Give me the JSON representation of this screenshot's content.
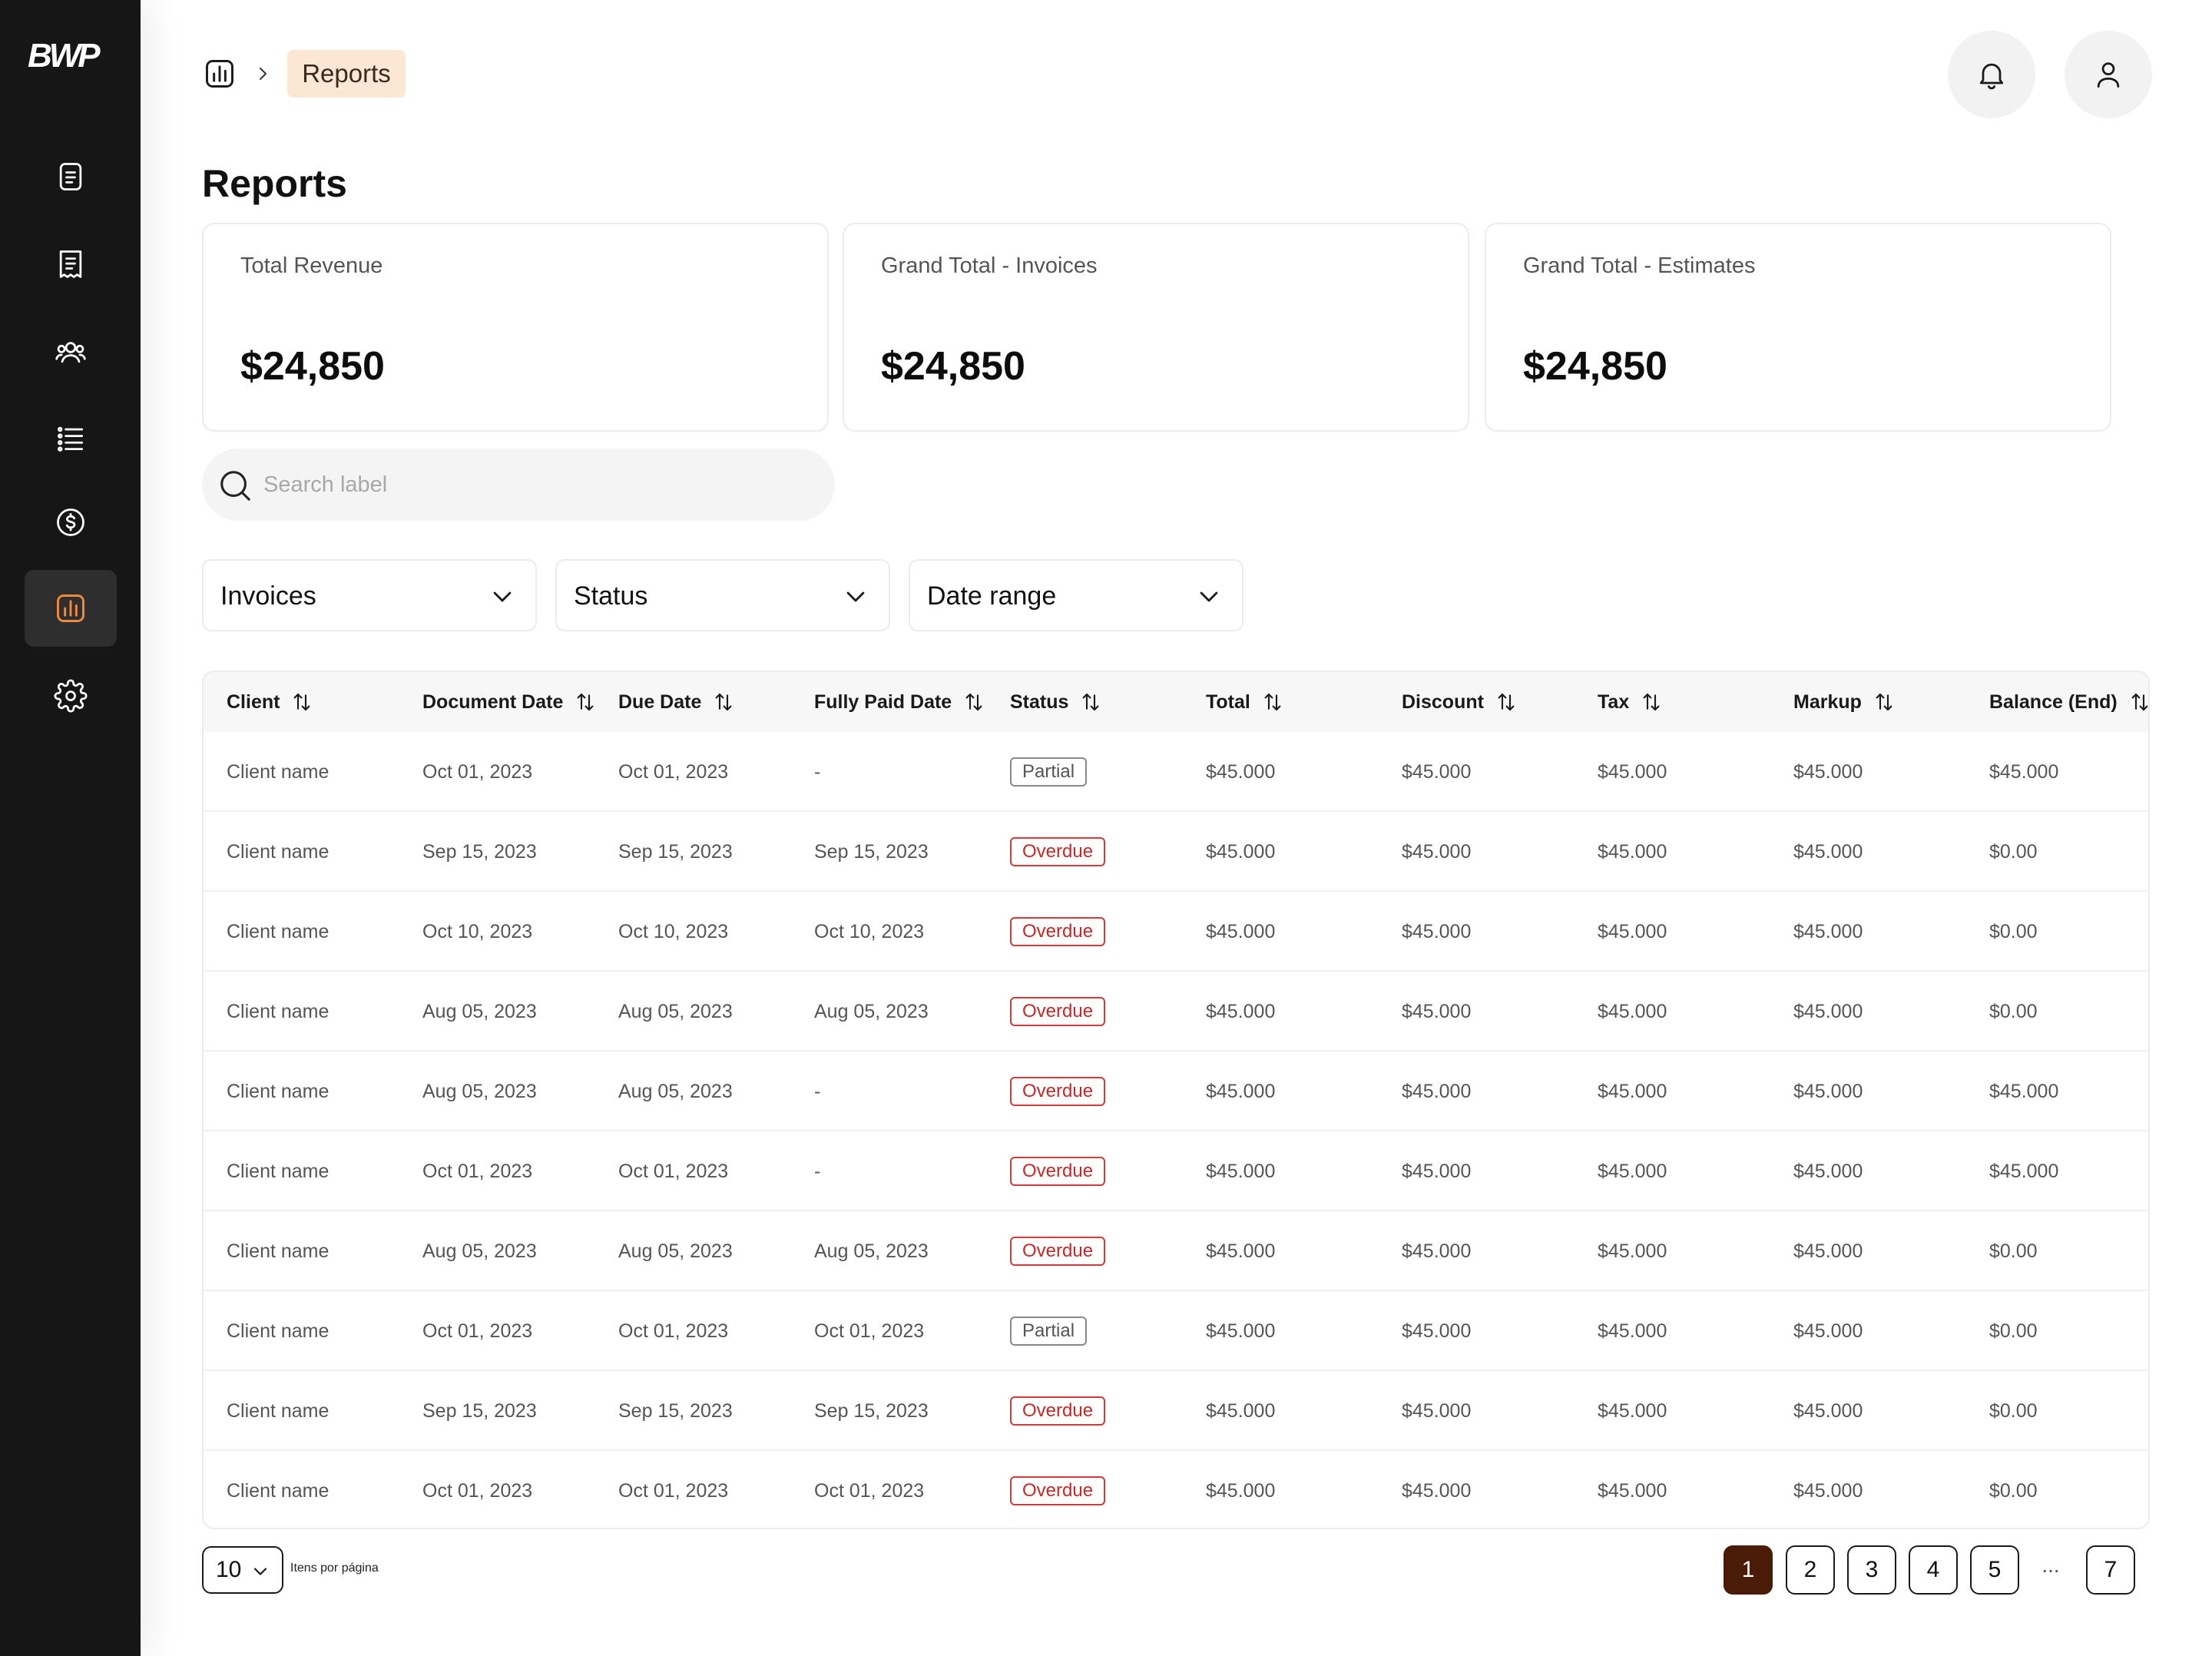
{
  "app": {
    "logo": "BWP"
  },
  "sidebar": {
    "items": [
      {
        "icon": "document-icon"
      },
      {
        "icon": "receipt-icon"
      },
      {
        "icon": "users-icon"
      },
      {
        "icon": "list-icon"
      },
      {
        "icon": "dollar-icon"
      },
      {
        "icon": "bar-chart-icon",
        "active": true
      },
      {
        "icon": "gear-icon"
      }
    ]
  },
  "header": {
    "breadcrumb_icon": "bar-chart-icon",
    "breadcrumb_current": "Reports",
    "accent_bg": "#fce7d4"
  },
  "page": {
    "title": "Reports"
  },
  "cards": [
    {
      "label": "Total Revenue",
      "value": "$24,850"
    },
    {
      "label": "Grand Total - Invoices",
      "value": "$24,850"
    },
    {
      "label": "Grand Total - Estimates",
      "value": "$24,850"
    }
  ],
  "search": {
    "placeholder": "Search label",
    "value": ""
  },
  "filters": [
    {
      "label": "Invoices"
    },
    {
      "label": "Status"
    },
    {
      "label": "Date range"
    }
  ],
  "table": {
    "columns": [
      "Client",
      "Document Date",
      "Due Date",
      "Fully Paid Date",
      "Status",
      "Total",
      "Discount",
      "Tax",
      "Markup",
      "Balance (End)"
    ],
    "rows": [
      [
        "Client name",
        "Oct 01, 2023",
        "Oct 01, 2023",
        "-",
        "Partial",
        "$45.000",
        "$45.000",
        "$45.000",
        "$45.000",
        "$45.000"
      ],
      [
        "Client name",
        "Sep 15, 2023",
        "Sep 15, 2023",
        "Sep 15, 2023",
        "Overdue",
        "$45.000",
        "$45.000",
        "$45.000",
        "$45.000",
        "$0.00"
      ],
      [
        "Client name",
        "Oct 10, 2023",
        "Oct 10, 2023",
        "Oct 10, 2023",
        "Overdue",
        "$45.000",
        "$45.000",
        "$45.000",
        "$45.000",
        "$0.00"
      ],
      [
        "Client name",
        "Aug 05, 2023",
        "Aug 05, 2023",
        "Aug 05, 2023",
        "Overdue",
        "$45.000",
        "$45.000",
        "$45.000",
        "$45.000",
        "$0.00"
      ],
      [
        "Client name",
        "Aug 05, 2023",
        "Aug 05, 2023",
        "-",
        "Overdue",
        "$45.000",
        "$45.000",
        "$45.000",
        "$45.000",
        "$45.000"
      ],
      [
        "Client name",
        "Oct 01, 2023",
        "Oct 01, 2023",
        "-",
        "Overdue",
        "$45.000",
        "$45.000",
        "$45.000",
        "$45.000",
        "$45.000"
      ],
      [
        "Client name",
        "Aug 05, 2023",
        "Aug 05, 2023",
        "Aug 05, 2023",
        "Overdue",
        "$45.000",
        "$45.000",
        "$45.000",
        "$45.000",
        "$0.00"
      ],
      [
        "Client name",
        "Oct 01, 2023",
        "Oct 01, 2023",
        "Oct 01, 2023",
        "Partial",
        "$45.000",
        "$45.000",
        "$45.000",
        "$45.000",
        "$0.00"
      ],
      [
        "Client name",
        "Sep 15, 2023",
        "Sep 15, 2023",
        "Sep 15, 2023",
        "Overdue",
        "$45.000",
        "$45.000",
        "$45.000",
        "$45.000",
        "$0.00"
      ],
      [
        "Client name",
        "Oct 01, 2023",
        "Oct 01, 2023",
        "Oct 01, 2023",
        "Overdue",
        "$45.000",
        "$45.000",
        "$45.000",
        "$45.000",
        "$0.00"
      ]
    ],
    "status_colors": {
      "Overdue": "#c62828",
      "Partial": "#555555"
    }
  },
  "pagination": {
    "per_page": "10",
    "per_page_label": "Itens por página",
    "pages": [
      "1",
      "2",
      "3",
      "4",
      "5"
    ],
    "ellipsis": "...",
    "last_page": "7",
    "current": "1",
    "active_color": "#4a1c08"
  }
}
